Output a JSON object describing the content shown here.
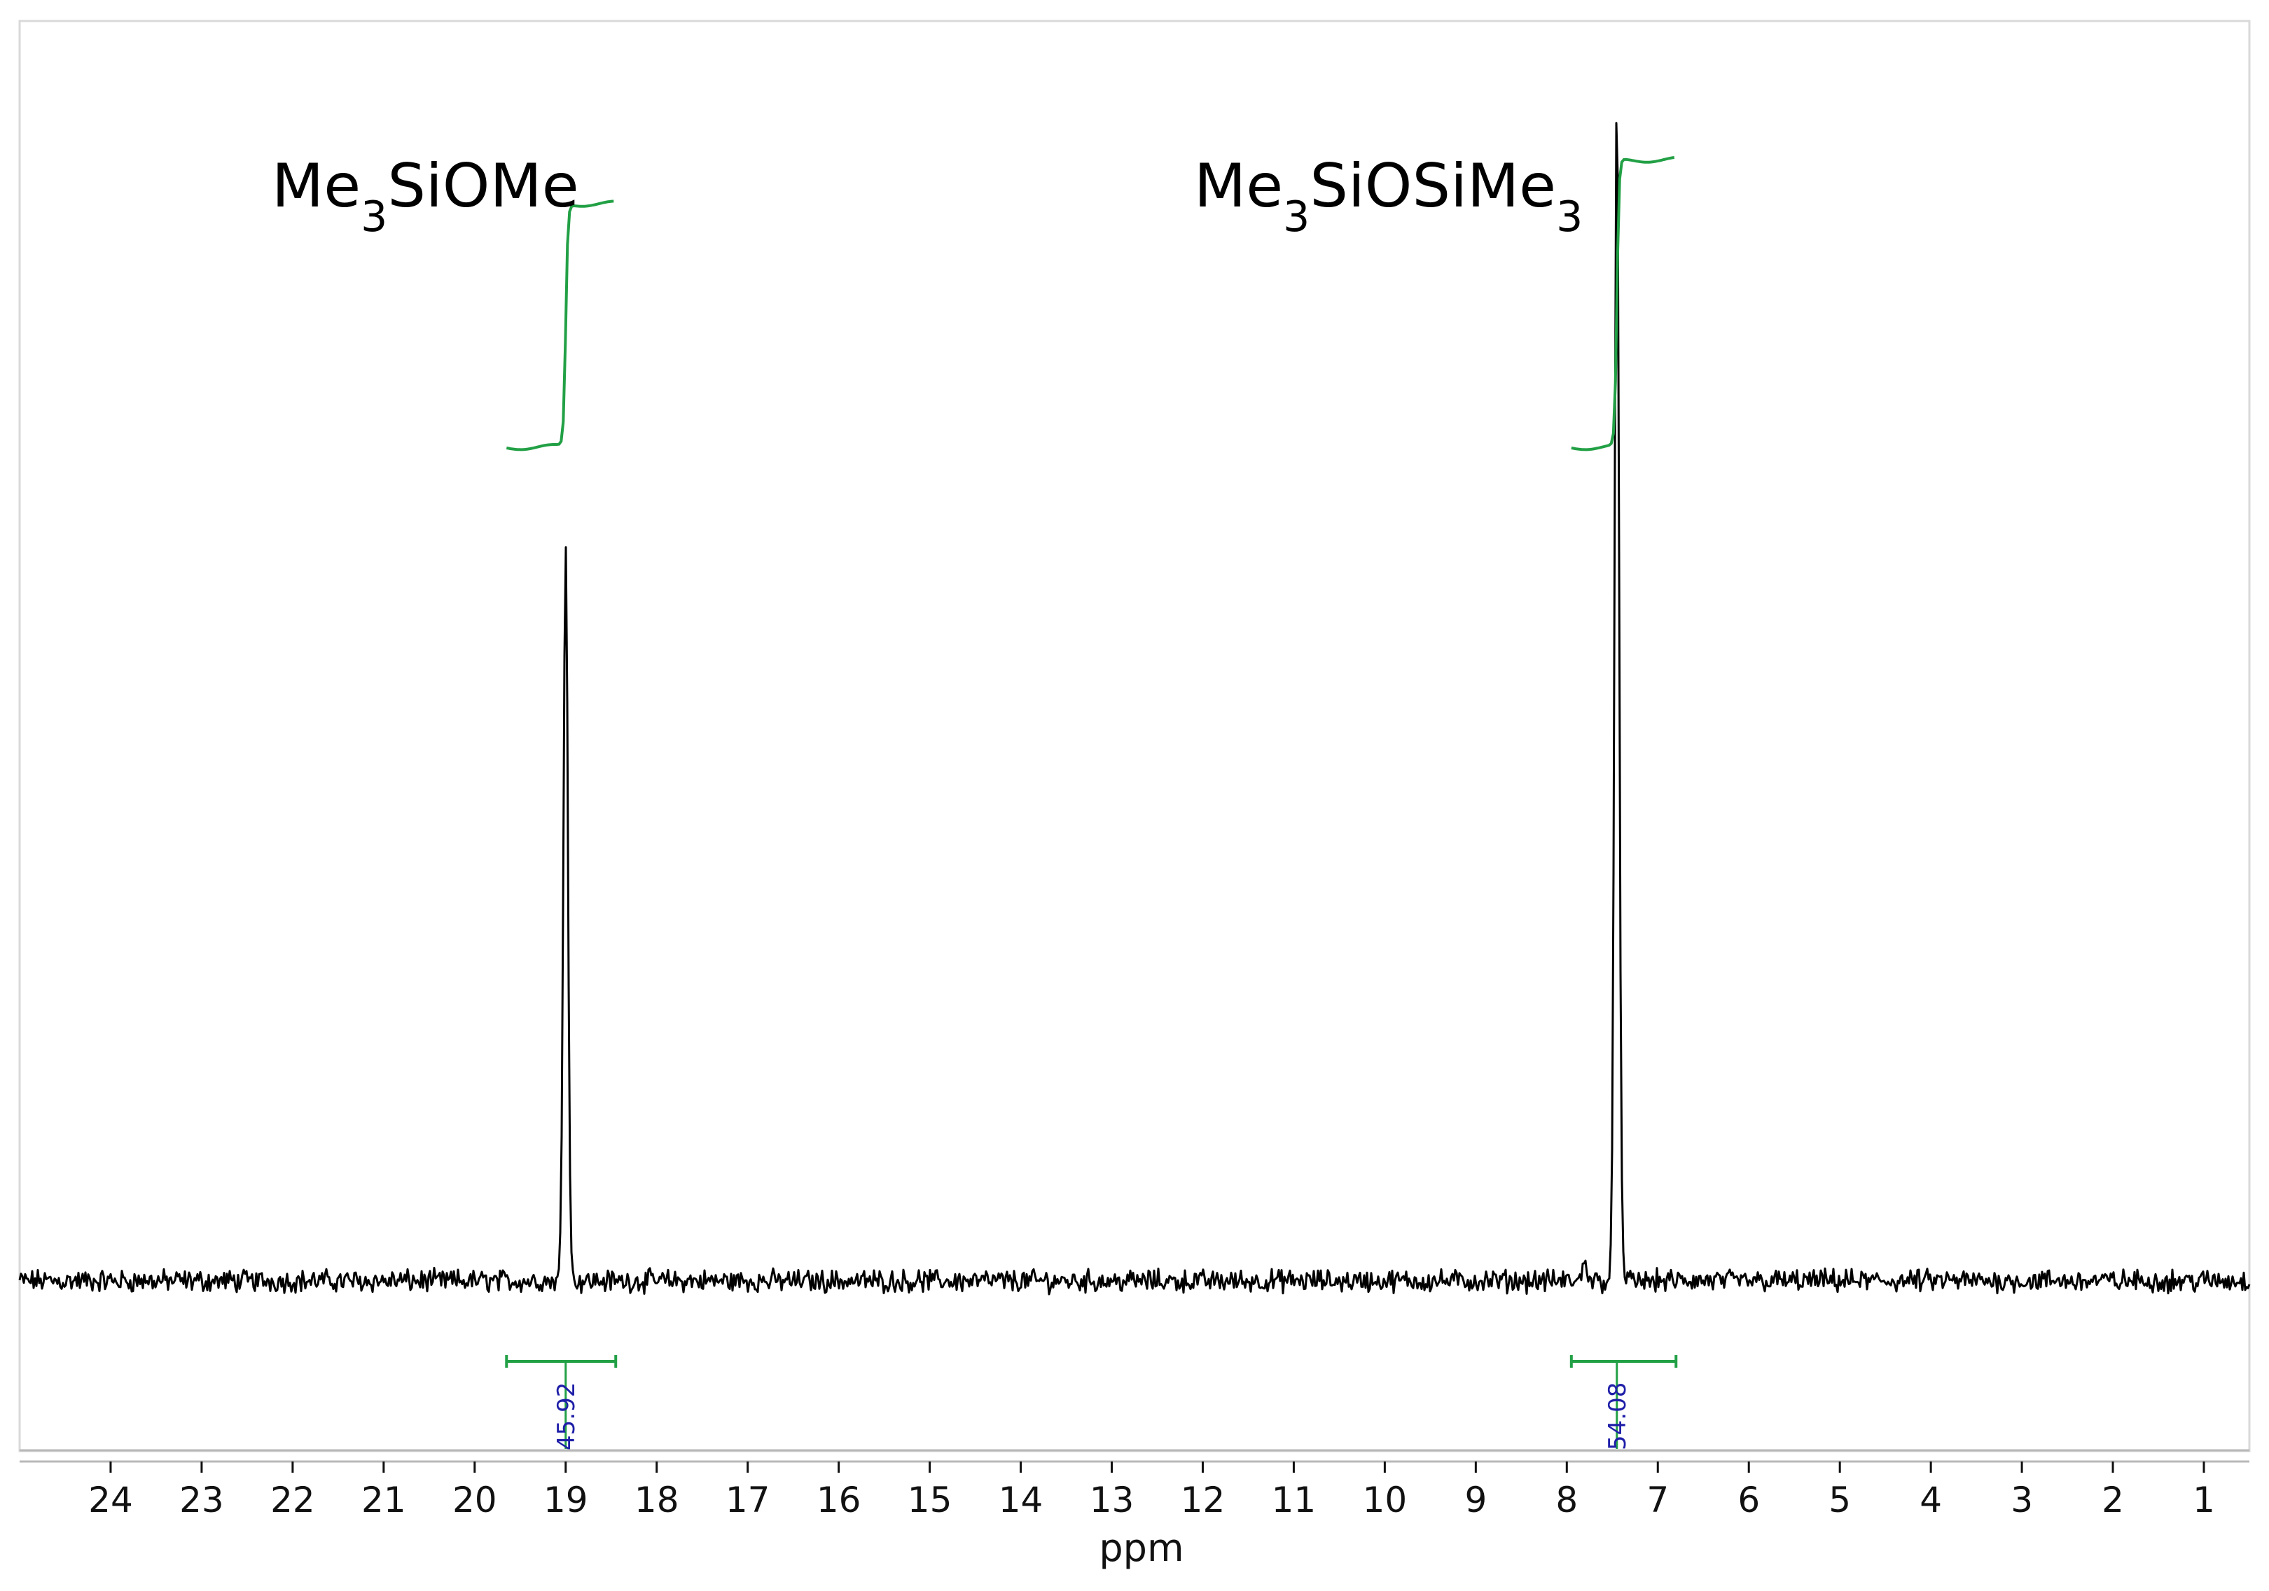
{
  "chart_data": {
    "type": "line",
    "title": "",
    "xlabel": "ppm",
    "ylabel": "",
    "x_reversed": true,
    "xlim": [
      25.0,
      0.5
    ],
    "ylim": [
      -0.04,
      1.0
    ],
    "grid": false,
    "x_ticks": [
      24,
      23,
      22,
      21,
      20,
      19,
      18,
      17,
      16,
      15,
      14,
      13,
      12,
      11,
      10,
      9,
      8,
      7,
      6,
      5,
      4,
      3,
      2,
      1
    ],
    "peaks": [
      {
        "x": 19.0,
        "y": 0.6,
        "label_main": "Me",
        "label_sub": "3",
        "label_tail": "SiOMe"
      },
      {
        "x": 7.45,
        "y": 0.97,
        "label_main": "Me",
        "label_sub": "3",
        "label_tail": "SiOSiMe",
        "label_sub2": "3"
      }
    ],
    "integrals": [
      {
        "from": 19.65,
        "to": 18.45,
        "value": "45.92"
      },
      {
        "from": 7.95,
        "to": 6.8,
        "value": "54.08"
      }
    ],
    "colors": {
      "spectrum": "#000000",
      "integral": "#22a045",
      "integral_value": "#1f1fa8",
      "frame": "#b8b8b8"
    }
  }
}
